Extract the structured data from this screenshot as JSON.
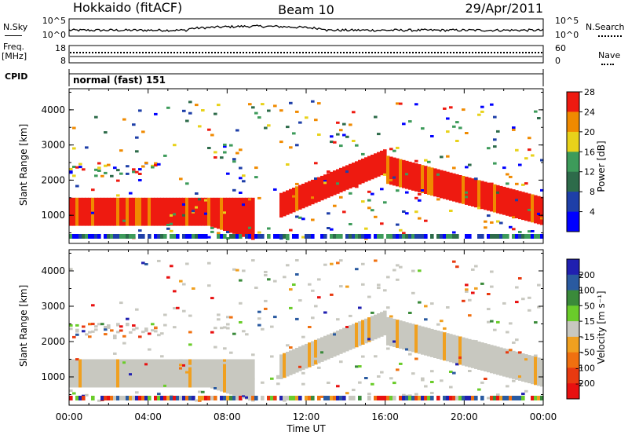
{
  "header": {
    "radar": "Hokkaido (fitACF)",
    "beam": "Beam 10",
    "date": "29/Apr/2011"
  },
  "strip": {
    "nsky_label": "N.Sky",
    "nsky_ticks": [
      "10^5",
      "10^0"
    ],
    "nsearch_label": "N.Search",
    "nsearch_ticks": [
      "10^5",
      "10^0"
    ],
    "freq_label": "Freq.",
    "freq_unit": "[MHz]",
    "freq_ticks": [
      "18",
      "8"
    ],
    "nave_label": "Nave",
    "nave_ticks": [
      "60",
      "0"
    ],
    "cpid_label": "CPID",
    "cpid_value": "normal (fast) 151"
  },
  "chart_data": [
    {
      "type": "heatmap",
      "name": "power",
      "ylabel": "Slant Range [km]",
      "yticks": [
        1000,
        2000,
        3000,
        4000
      ],
      "ylim": [
        200,
        4600
      ],
      "xlim": [
        0,
        24
      ],
      "colorbar": {
        "label": "Power [dB]",
        "ticks": [
          4,
          8,
          12,
          16,
          20,
          24,
          28
        ],
        "colors": [
          "#0000ff",
          "#1e3fa8",
          "#2d6b4a",
          "#3d9b5a",
          "#e8d21a",
          "#f08a00",
          "#ee1a10"
        ]
      },
      "echo_bands": [
        {
          "hours": [
            0,
            9.3
          ],
          "range_km": [
            700,
            1500
          ],
          "level": "strong"
        },
        {
          "hours": [
            10.5,
            16.0
          ],
          "range_km": [
            1200,
            2600
          ],
          "level": "strong"
        },
        {
          "hours": [
            16.0,
            24.0
          ],
          "range_km": [
            800,
            2800
          ],
          "level": "strong"
        },
        {
          "hours": [
            0,
            4.5
          ],
          "range_km": [
            2100,
            2500
          ],
          "level": "weak"
        },
        {
          "hours": [
            10.0,
            13.0
          ],
          "range_km": [
            1500,
            3500
          ],
          "level": "mixed"
        }
      ]
    },
    {
      "type": "heatmap",
      "name": "velocity",
      "ylabel": "Slant Range [km]",
      "xlabel": "Time UT",
      "yticks": [
        1000,
        2000,
        3000,
        4000
      ],
      "ylim": [
        200,
        4600
      ],
      "xlim": [
        0,
        24
      ],
      "xticks": [
        "00:00",
        "04:00",
        "08:00",
        "12:00",
        "16:00",
        "20:00",
        "00:00"
      ],
      "colorbar": {
        "label": "Velocity [m s⁻¹]",
        "ticks": [
          "200",
          "100",
          "50",
          "15",
          "-15",
          "-50",
          "-100",
          "-200"
        ],
        "colors": [
          "#2020b0",
          "#2a5aa0",
          "#3a8a3a",
          "#6acc2a",
          "#c8c8c0",
          "#f0a020",
          "#f07010",
          "#e83a10",
          "#e81010"
        ]
      }
    }
  ]
}
